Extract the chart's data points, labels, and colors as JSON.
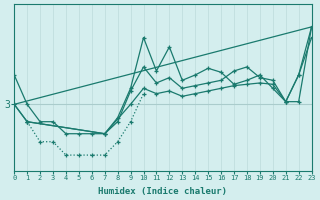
{
  "xlabel": "Humidex (Indice chaleur)",
  "bg_color": "#d4eeee",
  "line_color": "#1a7a6e",
  "grid_color_v": "#c0dede",
  "grid_color_h": "#aacccc",
  "xlim": [
    0,
    23
  ],
  "ylim_min": 2.5,
  "ylim_max": 3.75,
  "ytick_val": 3.0,
  "line1": {
    "x": [
      0,
      1,
      2,
      3,
      4,
      5,
      6,
      7,
      8,
      9,
      10,
      11,
      12,
      13,
      14,
      15,
      16,
      17,
      18,
      19,
      20,
      21,
      22,
      23
    ],
    "y": [
      3.22,
      3.0,
      2.87,
      2.87,
      2.78,
      2.78,
      2.78,
      2.78,
      2.9,
      3.12,
      3.5,
      3.25,
      3.43,
      3.18,
      3.22,
      3.27,
      3.24,
      3.15,
      3.18,
      3.22,
      3.12,
      3.02,
      3.22,
      3.5
    ],
    "linestyle": "-",
    "marker": "+"
  },
  "line2": {
    "x": [
      1,
      2,
      3,
      4,
      5,
      6,
      7,
      8,
      9,
      10
    ],
    "y": [
      2.87,
      2.72,
      2.72,
      2.62,
      2.62,
      2.62,
      2.62,
      2.72,
      2.87,
      3.08
    ],
    "linestyle": ":",
    "marker": "+"
  },
  "line3": {
    "x": [
      0,
      23
    ],
    "y": [
      3.0,
      3.58
    ],
    "linestyle": "-",
    "marker": null
  },
  "line4": {
    "x": [
      0,
      1,
      7,
      8,
      9,
      10,
      11,
      12,
      13,
      14,
      15,
      16,
      17,
      18,
      19,
      20,
      21,
      22,
      23
    ],
    "y": [
      3.0,
      2.87,
      2.78,
      2.87,
      3.1,
      3.28,
      3.16,
      3.2,
      3.12,
      3.14,
      3.16,
      3.18,
      3.25,
      3.28,
      3.2,
      3.18,
      3.02,
      3.22,
      3.58
    ],
    "linestyle": "-",
    "marker": "+"
  },
  "line5": {
    "x": [
      0,
      1,
      7,
      9,
      10,
      11,
      12,
      13,
      14,
      15,
      16,
      17,
      18,
      19,
      20,
      21,
      22,
      23
    ],
    "y": [
      3.0,
      2.87,
      2.78,
      3.0,
      3.12,
      3.08,
      3.1,
      3.06,
      3.08,
      3.1,
      3.12,
      3.14,
      3.15,
      3.16,
      3.15,
      3.02,
      3.02,
      3.58
    ],
    "linestyle": "-",
    "marker": "+"
  }
}
